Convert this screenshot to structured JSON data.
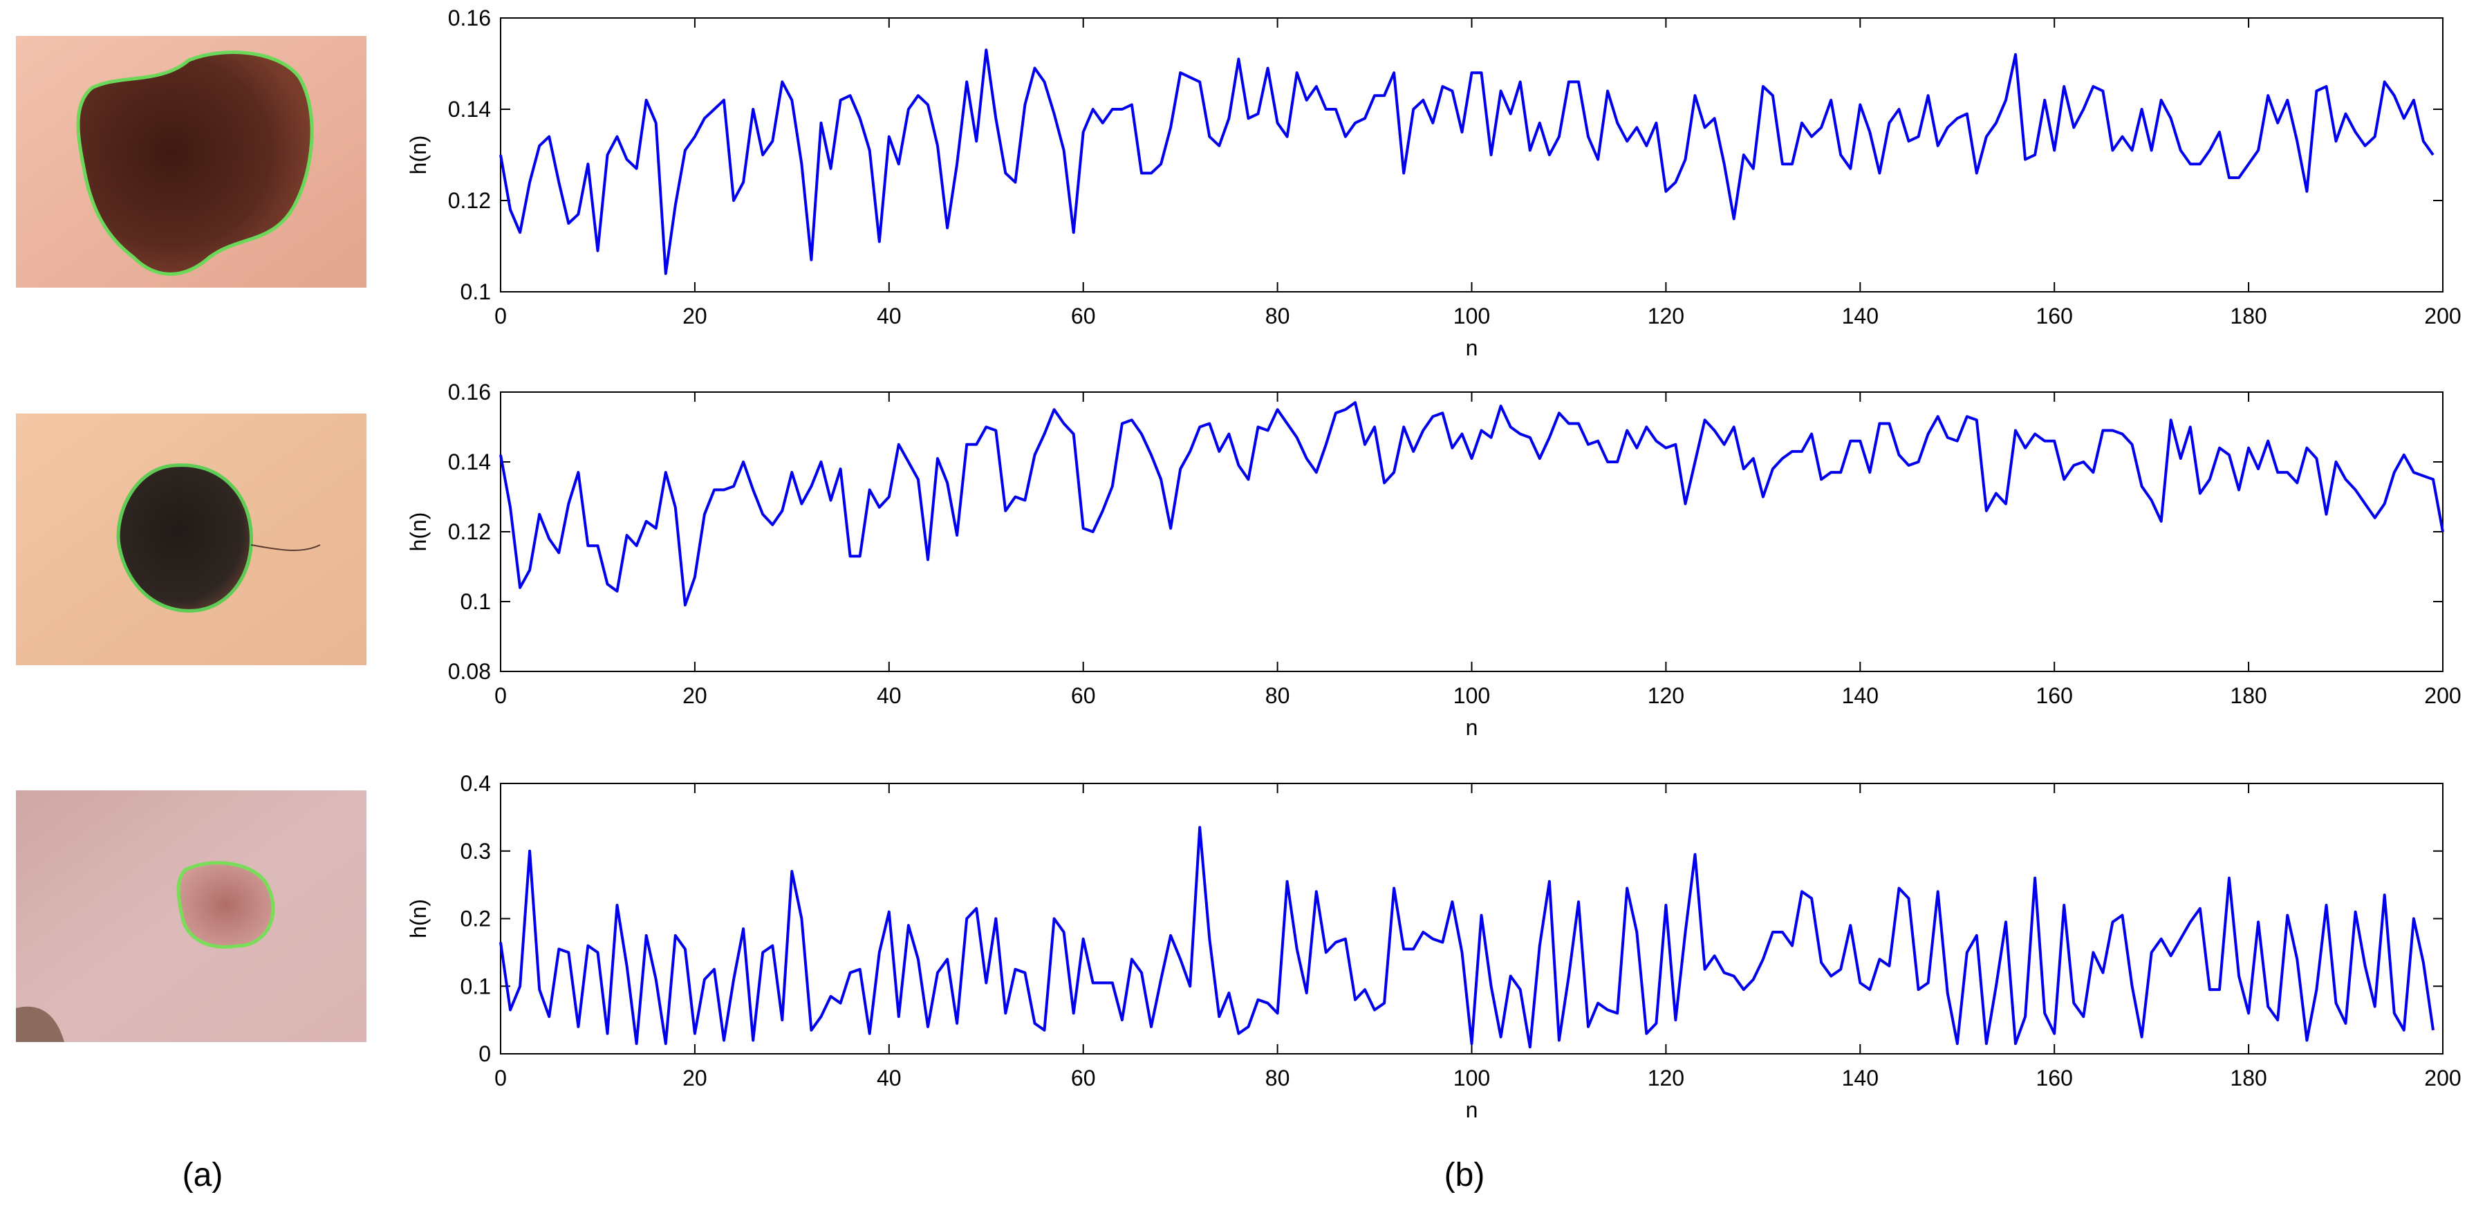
{
  "figure": {
    "labels": {
      "left": "(a)",
      "right": "(b)"
    }
  },
  "images": [
    {
      "name": "large-irregular-dark-lesion",
      "skin_color": "#e9b39e",
      "lesion_color": "#5a2a1f",
      "contour_color": "#6cd85a"
    },
    {
      "name": "small-dark-nevus",
      "skin_color": "#f0c09c",
      "lesion_color": "#2f2622",
      "contour_color": "#5ecc55"
    },
    {
      "name": "faint-pink-lesion",
      "skin_color": "#d9b7b6",
      "lesion_color": "#c78c87",
      "contour_color": "#79dd5a"
    }
  ],
  "chart_data": [
    {
      "type": "line",
      "xlabel": "n",
      "ylabel": "h(n)",
      "xlim": [
        0,
        200
      ],
      "ylim": [
        0.1,
        0.16
      ],
      "xticks": [
        "0",
        "20",
        "40",
        "60",
        "80",
        "100",
        "120",
        "140",
        "160",
        "180",
        "200"
      ],
      "yticks": [
        "0.1",
        "0.12",
        "0.14",
        "0.16"
      ],
      "line_color": "#0000ee",
      "series": [
        {
          "values": [
            0.13,
            0.118,
            0.113,
            0.124,
            0.132,
            0.134,
            0.124,
            0.115,
            0.117,
            0.128,
            0.109,
            0.13,
            0.134,
            0.129,
            0.127,
            0.142,
            0.137,
            0.104,
            0.119,
            0.131,
            0.134,
            0.138,
            0.14,
            0.142,
            0.12,
            0.124,
            0.14,
            0.13,
            0.133,
            0.146,
            0.142,
            0.128,
            0.107,
            0.137,
            0.127,
            0.142,
            0.143,
            0.138,
            0.131,
            0.111,
            0.134,
            0.128,
            0.14,
            0.143,
            0.141,
            0.132,
            0.114,
            0.128,
            0.146,
            0.133,
            0.153,
            0.138,
            0.126,
            0.124,
            0.141,
            0.149,
            0.146,
            0.139,
            0.131,
            0.113,
            0.135,
            0.14,
            0.137,
            0.14,
            0.14,
            0.141,
            0.126,
            0.126,
            0.128,
            0.136,
            0.148,
            0.147,
            0.146,
            0.134,
            0.132,
            0.138,
            0.151,
            0.138,
            0.139,
            0.149,
            0.137,
            0.134,
            0.148,
            0.142,
            0.145,
            0.14,
            0.14,
            0.134,
            0.137,
            0.138,
            0.143,
            0.143,
            0.148,
            0.126,
            0.14,
            0.142,
            0.137,
            0.145,
            0.144,
            0.135,
            0.148,
            0.148,
            0.13,
            0.144,
            0.139,
            0.146,
            0.131,
            0.137,
            0.13,
            0.134,
            0.146,
            0.146,
            0.134,
            0.129,
            0.144,
            0.137,
            0.133,
            0.136,
            0.132,
            0.137,
            0.122,
            0.124,
            0.129,
            0.143,
            0.136,
            0.138,
            0.128,
            0.116,
            0.13,
            0.127,
            0.145,
            0.143,
            0.128,
            0.128,
            0.137,
            0.134,
            0.136,
            0.142,
            0.13,
            0.127,
            0.141,
            0.135,
            0.126,
            0.137,
            0.14,
            0.133,
            0.134,
            0.143,
            0.132,
            0.136,
            0.138,
            0.139,
            0.126,
            0.134,
            0.137,
            0.142,
            0.152,
            0.129,
            0.13,
            0.142,
            0.131,
            0.145,
            0.136,
            0.14,
            0.145,
            0.144,
            0.131,
            0.134,
            0.131,
            0.14,
            0.131,
            0.142,
            0.138,
            0.131,
            0.128,
            0.128,
            0.131,
            0.135,
            0.125,
            0.125,
            0.128,
            0.131,
            0.143,
            0.137,
            0.142,
            0.133,
            0.122,
            0.144,
            0.145,
            0.133,
            0.139,
            0.135,
            0.132,
            0.134,
            0.146,
            0.143,
            0.138,
            0.142,
            0.133,
            0.13
          ]
        }
      ]
    },
    {
      "type": "line",
      "xlabel": "n",
      "ylabel": "h(n)",
      "xlim": [
        0,
        200
      ],
      "ylim": [
        0.08,
        0.16
      ],
      "xticks": [
        "0",
        "20",
        "40",
        "60",
        "80",
        "100",
        "120",
        "140",
        "160",
        "180",
        "200"
      ],
      "yticks": [
        "0.08",
        "0.1",
        "0.12",
        "0.14",
        "0.16"
      ],
      "line_color": "#0000ee",
      "series": [
        {
          "values": [
            0.142,
            0.127,
            0.104,
            0.109,
            0.125,
            0.118,
            0.114,
            0.128,
            0.137,
            0.116,
            0.116,
            0.105,
            0.103,
            0.119,
            0.116,
            0.123,
            0.121,
            0.137,
            0.127,
            0.099,
            0.107,
            0.125,
            0.132,
            0.132,
            0.133,
            0.14,
            0.132,
            0.125,
            0.122,
            0.126,
            0.137,
            0.128,
            0.133,
            0.14,
            0.129,
            0.138,
            0.113,
            0.113,
            0.132,
            0.127,
            0.13,
            0.145,
            0.14,
            0.135,
            0.112,
            0.141,
            0.134,
            0.119,
            0.145,
            0.145,
            0.15,
            0.149,
            0.126,
            0.13,
            0.129,
            0.142,
            0.148,
            0.155,
            0.151,
            0.148,
            0.121,
            0.12,
            0.126,
            0.133,
            0.151,
            0.152,
            0.148,
            0.142,
            0.135,
            0.121,
            0.138,
            0.143,
            0.15,
            0.151,
            0.143,
            0.148,
            0.139,
            0.135,
            0.15,
            0.149,
            0.155,
            0.151,
            0.147,
            0.141,
            0.137,
            0.145,
            0.154,
            0.155,
            0.157,
            0.145,
            0.15,
            0.134,
            0.137,
            0.15,
            0.143,
            0.149,
            0.153,
            0.154,
            0.144,
            0.148,
            0.141,
            0.149,
            0.147,
            0.156,
            0.15,
            0.148,
            0.147,
            0.141,
            0.147,
            0.154,
            0.151,
            0.151,
            0.145,
            0.146,
            0.14,
            0.14,
            0.149,
            0.144,
            0.15,
            0.146,
            0.144,
            0.145,
            0.128,
            0.14,
            0.152,
            0.149,
            0.145,
            0.15,
            0.138,
            0.141,
            0.13,
            0.138,
            0.141,
            0.143,
            0.143,
            0.148,
            0.135,
            0.137,
            0.137,
            0.146,
            0.146,
            0.137,
            0.151,
            0.151,
            0.142,
            0.139,
            0.14,
            0.148,
            0.153,
            0.147,
            0.146,
            0.153,
            0.152,
            0.126,
            0.131,
            0.128,
            0.149,
            0.144,
            0.148,
            0.146,
            0.146,
            0.135,
            0.139,
            0.14,
            0.137,
            0.149,
            0.149,
            0.148,
            0.145,
            0.133,
            0.129,
            0.123,
            0.152,
            0.141,
            0.15,
            0.131,
            0.135,
            0.144,
            0.142,
            0.132,
            0.144,
            0.138,
            0.146,
            0.137,
            0.137,
            0.134,
            0.144,
            0.141,
            0.125,
            0.14,
            0.135,
            0.132,
            0.128,
            0.124,
            0.128,
            0.137,
            0.142,
            0.137,
            0.136,
            0.135,
            0.12
          ]
        }
      ]
    },
    {
      "type": "line",
      "xlabel": "n",
      "ylabel": "h(n)",
      "xlim": [
        0,
        200
      ],
      "ylim": [
        0,
        0.4
      ],
      "xticks": [
        "0",
        "20",
        "40",
        "60",
        "80",
        "100",
        "120",
        "140",
        "160",
        "180",
        "200"
      ],
      "yticks": [
        "0",
        "0.1",
        "0.2",
        "0.3",
        "0.4"
      ],
      "line_color": "#0000ee",
      "series": [
        {
          "values": [
            0.165,
            0.065,
            0.1,
            0.3,
            0.095,
            0.055,
            0.155,
            0.15,
            0.04,
            0.16,
            0.15,
            0.03,
            0.22,
            0.13,
            0.015,
            0.175,
            0.11,
            0.015,
            0.175,
            0.155,
            0.03,
            0.11,
            0.125,
            0.02,
            0.11,
            0.185,
            0.02,
            0.15,
            0.16,
            0.05,
            0.27,
            0.2,
            0.035,
            0.055,
            0.085,
            0.075,
            0.12,
            0.125,
            0.03,
            0.15,
            0.21,
            0.055,
            0.19,
            0.14,
            0.04,
            0.12,
            0.14,
            0.045,
            0.2,
            0.215,
            0.105,
            0.2,
            0.06,
            0.125,
            0.12,
            0.045,
            0.035,
            0.2,
            0.18,
            0.06,
            0.17,
            0.105,
            0.105,
            0.105,
            0.05,
            0.14,
            0.12,
            0.04,
            0.11,
            0.175,
            0.14,
            0.1,
            0.335,
            0.17,
            0.055,
            0.09,
            0.03,
            0.04,
            0.08,
            0.075,
            0.06,
            0.255,
            0.155,
            0.09,
            0.24,
            0.15,
            0.165,
            0.17,
            0.08,
            0.095,
            0.065,
            0.075,
            0.245,
            0.155,
            0.155,
            0.18,
            0.17,
            0.165,
            0.225,
            0.15,
            0.015,
            0.205,
            0.1,
            0.025,
            0.115,
            0.095,
            0.01,
            0.16,
            0.255,
            0.02,
            0.115,
            0.225,
            0.04,
            0.075,
            0.065,
            0.06,
            0.245,
            0.18,
            0.03,
            0.045,
            0.22,
            0.05,
            0.18,
            0.295,
            0.125,
            0.145,
            0.12,
            0.115,
            0.095,
            0.11,
            0.14,
            0.18,
            0.18,
            0.16,
            0.24,
            0.23,
            0.135,
            0.115,
            0.125,
            0.19,
            0.105,
            0.095,
            0.14,
            0.13,
            0.245,
            0.23,
            0.095,
            0.105,
            0.24,
            0.09,
            0.015,
            0.15,
            0.175,
            0.015,
            0.1,
            0.195,
            0.015,
            0.055,
            0.26,
            0.06,
            0.03,
            0.22,
            0.075,
            0.055,
            0.15,
            0.12,
            0.195,
            0.205,
            0.1,
            0.025,
            0.15,
            0.17,
            0.145,
            0.17,
            0.195,
            0.215,
            0.095,
            0.095,
            0.26,
            0.115,
            0.06,
            0.195,
            0.07,
            0.05,
            0.205,
            0.14,
            0.02,
            0.095,
            0.22,
            0.075,
            0.045,
            0.21,
            0.13,
            0.07,
            0.235,
            0.06,
            0.035,
            0.2,
            0.135,
            0.035
          ]
        }
      ]
    }
  ]
}
